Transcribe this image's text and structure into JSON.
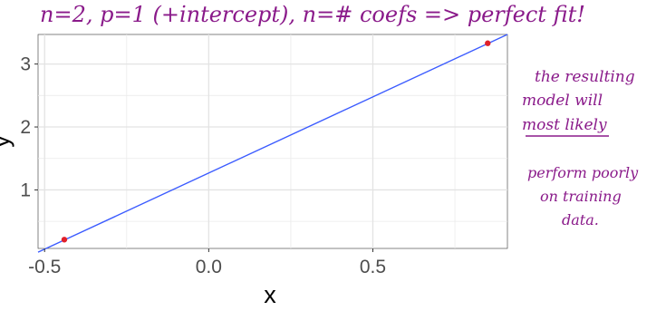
{
  "chart_data": {
    "type": "scatter",
    "title": "",
    "xlabel": "x",
    "ylabel": "y",
    "xlim": [
      -0.52,
      0.91
    ],
    "ylim": [
      0.07,
      3.47
    ],
    "x_ticks": [
      -0.5,
      0.0,
      0.5
    ],
    "x_tick_labels": [
      "-0.5",
      "0.0",
      "0.5"
    ],
    "y_ticks": [
      1,
      2,
      3
    ],
    "y_tick_labels": [
      "1",
      "2",
      "3"
    ],
    "grid": true,
    "points": [
      {
        "x": -0.44,
        "y": 0.21
      },
      {
        "x": 0.85,
        "y": 3.33
      }
    ],
    "fit_line": {
      "x": [
        -0.52,
        0.91
      ],
      "y": [
        0.01,
        3.47
      ]
    },
    "colors": {
      "points": "#e0202a",
      "line": "#3b5bff",
      "grid": "#ebebeb",
      "annotation": "#8a1a8a"
    }
  },
  "annotations": {
    "top": "n=2, p=1 (+intercept), n=# coefs => perfect fit!",
    "side_lines": [
      "the resulting",
      "model will",
      "most likely",
      "perform poorly",
      "on training",
      "data."
    ]
  }
}
